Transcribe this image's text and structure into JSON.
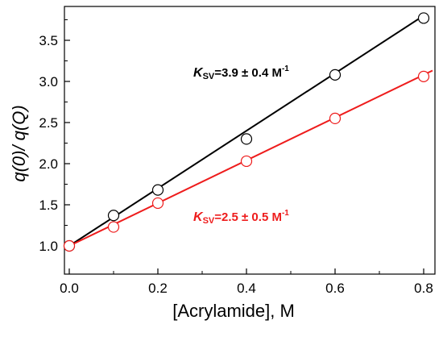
{
  "chart_data": {
    "type": "scatter",
    "title": "",
    "xlabel": "[Acrylamide], M",
    "ylabel": "q(0)/ q(Q)",
    "xlim": [
      -0.01,
      0.82
    ],
    "ylim": [
      0.85,
      3.9
    ],
    "x_ticks": [
      0.0,
      0.2,
      0.4,
      0.6,
      0.8
    ],
    "x_tick_labels": [
      "0.0",
      "0.2",
      "0.4",
      "0.6",
      "0.8"
    ],
    "y_ticks": [
      1.0,
      1.5,
      2.0,
      2.5,
      3.0,
      3.5
    ],
    "y_tick_labels": [
      "1.0",
      "1.5",
      "2.0",
      "2.5",
      "3.0",
      "3.5"
    ],
    "grid": false,
    "series": [
      {
        "color": "#000000",
        "x": [
          0.0,
          0.1,
          0.2,
          0.4,
          0.6,
          0.8
        ],
        "y": [
          1.0,
          1.37,
          1.68,
          2.3,
          3.08,
          3.77
        ],
        "fit": {
          "intercept": 1.0,
          "slope": 3.5,
          "x_range": [
            0.0,
            0.8
          ]
        }
      },
      {
        "color": "#ee1c1c",
        "x": [
          0.0,
          0.1,
          0.2,
          0.4,
          0.6,
          0.8
        ],
        "y": [
          1.0,
          1.23,
          1.52,
          2.03,
          2.55,
          3.06
        ],
        "fit": {
          "intercept": 1.0,
          "slope": 2.6,
          "x_range": [
            0.0,
            0.82
          ]
        }
      }
    ],
    "annotations": [
      {
        "k": "K",
        "sub": "SV",
        "rest": "=3.9 ± 0.4 M",
        "sup": "-1",
        "color": "#000000"
      },
      {
        "k": "K",
        "sub": "SV",
        "rest": "=2.5 ± 0.5 M",
        "sup": "-1",
        "color": "#ee1c1c"
      }
    ]
  }
}
